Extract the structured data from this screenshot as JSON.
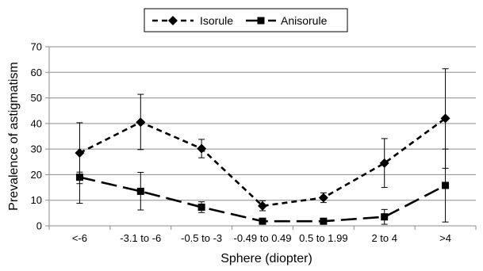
{
  "chart_data": {
    "type": "line",
    "title": "",
    "xlabel": "Sphere (diopter)",
    "ylabel": "Prevalence of astigmatism",
    "categories": [
      "<-6",
      "-3.1 to -6",
      "-0.5 to -3",
      "-0.49 to 0.49",
      "0.5 to 1.99",
      "2 to 4",
      ">4"
    ],
    "ylim": [
      0,
      70
    ],
    "yticks": [
      0,
      10,
      20,
      30,
      40,
      50,
      60,
      70
    ],
    "grid": true,
    "legend_position": "top-center",
    "series": [
      {
        "name": "Isorule",
        "marker": "diamond",
        "line_style": "short-dash",
        "color": "#000000",
        "values": [
          28.5,
          40.5,
          30.2,
          7.8,
          11.0,
          24.5,
          42.0
        ],
        "error_low": [
          16.5,
          29.8,
          26.6,
          5.9,
          9.1,
          15.0,
          22.5
        ],
        "error_high": [
          40.3,
          51.4,
          33.8,
          9.8,
          12.9,
          34.1,
          61.4
        ]
      },
      {
        "name": "Anisorule",
        "marker": "square",
        "line_style": "long-dash",
        "color": "#000000",
        "values": [
          19.0,
          13.5,
          7.3,
          1.8,
          1.8,
          3.5,
          15.8
        ],
        "error_low": [
          8.8,
          6.2,
          5.2,
          1.5,
          1.5,
          0.6,
          1.5
        ],
        "error_high": [
          21.0,
          20.9,
          9.4,
          2.1,
          2.1,
          6.4,
          30.0
        ]
      }
    ]
  }
}
